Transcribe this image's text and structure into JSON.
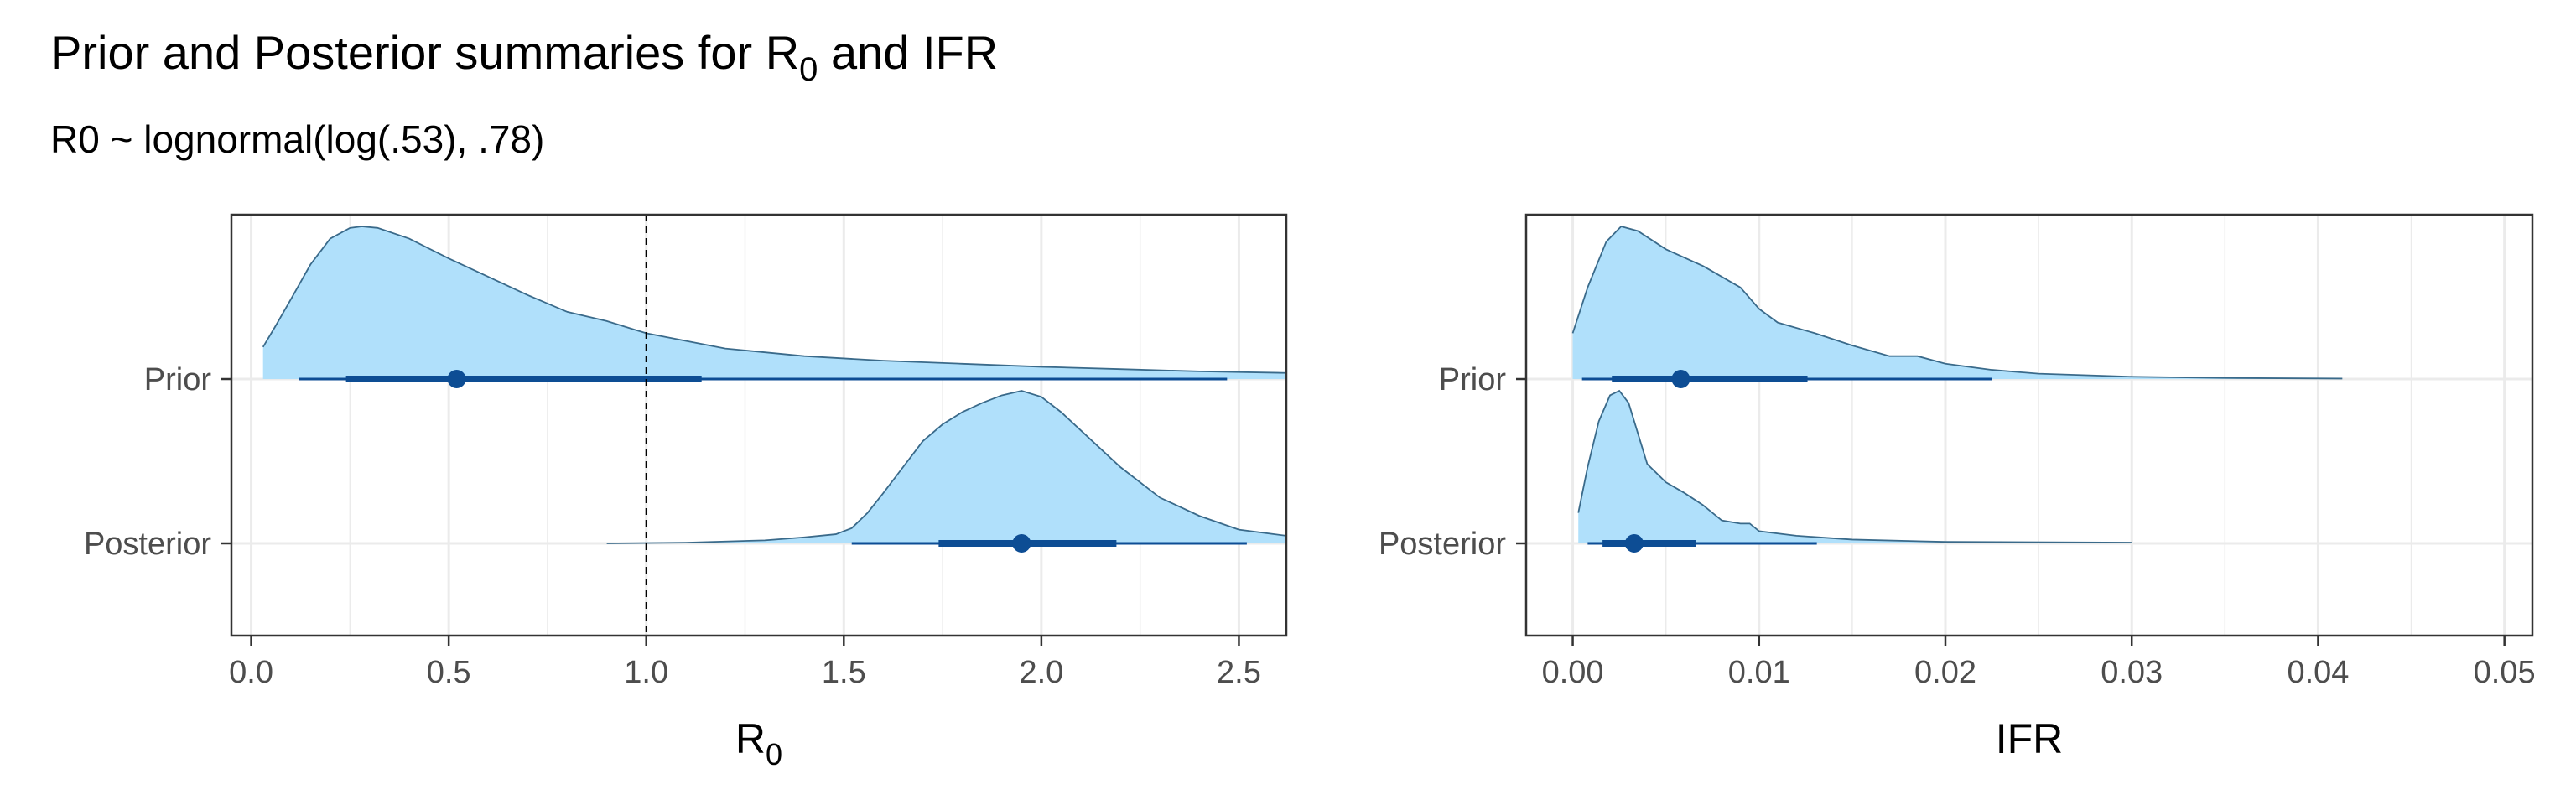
{
  "title": {
    "text_before": "Prior and Posterior summaries for R",
    "text_sub": "0",
    "text_after": " and IFR"
  },
  "subtitle": "R0 ~ lognormal(log(.53), .78)",
  "colors": {
    "density_fill": "#b0e0fb",
    "density_line": "#3a6a8a",
    "interval": "#0d4d94",
    "grid": "#ebebeb",
    "panel_border": "#333333",
    "reference_line": "#000000"
  },
  "chart_data": [
    {
      "type": "halfeye",
      "panel": "R0",
      "xlabel_main": "R",
      "xlabel_sub": "0",
      "xlim": [
        -0.05,
        2.62
      ],
      "x_ticks": [
        0,
        0.5,
        1,
        1.5,
        2,
        2.5
      ],
      "x_tick_labels": [
        "0.0",
        "0.5",
        "1.0",
        "1.5",
        "2.0",
        "2.5"
      ],
      "categories": [
        "Prior",
        "Posterior"
      ],
      "reference_line": 1.0,
      "series": [
        {
          "name": "Prior",
          "density": [
            [
              0.03,
              0.21
            ],
            [
              0.06,
              0.34
            ],
            [
              0.1,
              0.52
            ],
            [
              0.15,
              0.75
            ],
            [
              0.2,
              0.92
            ],
            [
              0.25,
              0.99
            ],
            [
              0.28,
              1.0
            ],
            [
              0.32,
              0.99
            ],
            [
              0.4,
              0.92
            ],
            [
              0.5,
              0.79
            ],
            [
              0.6,
              0.67
            ],
            [
              0.7,
              0.55
            ],
            [
              0.8,
              0.44
            ],
            [
              0.9,
              0.38
            ],
            [
              1.0,
              0.3
            ],
            [
              1.1,
              0.25
            ],
            [
              1.2,
              0.2
            ],
            [
              1.4,
              0.15
            ],
            [
              1.6,
              0.12
            ],
            [
              1.8,
              0.1
            ],
            [
              2.0,
              0.08
            ],
            [
              2.2,
              0.065
            ],
            [
              2.4,
              0.05
            ],
            [
              2.62,
              0.04
            ]
          ],
          "point": 0.52,
          "interval_66": [
            0.24,
            1.14
          ],
          "interval_95": [
            0.12,
            2.47
          ]
        },
        {
          "name": "Posterior",
          "density": [
            [
              0.9,
              0.0
            ],
            [
              1.1,
              0.005
            ],
            [
              1.3,
              0.02
            ],
            [
              1.4,
              0.04
            ],
            [
              1.48,
              0.06
            ],
            [
              1.52,
              0.1
            ],
            [
              1.56,
              0.2
            ],
            [
              1.6,
              0.33
            ],
            [
              1.65,
              0.5
            ],
            [
              1.7,
              0.67
            ],
            [
              1.75,
              0.78
            ],
            [
              1.8,
              0.86
            ],
            [
              1.85,
              0.92
            ],
            [
              1.9,
              0.97
            ],
            [
              1.95,
              1.0
            ],
            [
              2.0,
              0.96
            ],
            [
              2.05,
              0.86
            ],
            [
              2.1,
              0.74
            ],
            [
              2.2,
              0.5
            ],
            [
              2.3,
              0.3
            ],
            [
              2.4,
              0.18
            ],
            [
              2.5,
              0.09
            ],
            [
              2.62,
              0.05
            ]
          ],
          "point": 1.95,
          "interval_66": [
            1.74,
            2.19
          ],
          "interval_95": [
            1.52,
            2.52
          ]
        }
      ]
    },
    {
      "type": "halfeye",
      "panel": "IFR",
      "xlabel_main": "IFR",
      "xlabel_sub": "",
      "xlim": [
        -0.0025,
        0.0515
      ],
      "x_ticks": [
        0,
        0.01,
        0.02,
        0.03,
        0.04,
        0.05
      ],
      "x_tick_labels": [
        "0.00",
        "0.01",
        "0.02",
        "0.03",
        "0.04",
        "0.05"
      ],
      "categories": [
        "Prior",
        "Posterior"
      ],
      "series": [
        {
          "name": "Prior",
          "density": [
            [
              0.0,
              0.3
            ],
            [
              0.0008,
              0.6
            ],
            [
              0.0018,
              0.9
            ],
            [
              0.0026,
              1.0
            ],
            [
              0.0035,
              0.97
            ],
            [
              0.005,
              0.85
            ],
            [
              0.007,
              0.74
            ],
            [
              0.009,
              0.6
            ],
            [
              0.01,
              0.46
            ],
            [
              0.011,
              0.37
            ],
            [
              0.013,
              0.3
            ],
            [
              0.015,
              0.22
            ],
            [
              0.017,
              0.15
            ],
            [
              0.0185,
              0.15
            ],
            [
              0.02,
              0.1
            ],
            [
              0.0225,
              0.06
            ],
            [
              0.025,
              0.035
            ],
            [
              0.03,
              0.015
            ],
            [
              0.035,
              0.007
            ],
            [
              0.0413,
              0.003
            ]
          ],
          "point": 0.0058,
          "interval_66": [
            0.0021,
            0.0126
          ],
          "interval_95": [
            0.0005,
            0.0225
          ]
        },
        {
          "name": "Posterior",
          "density": [
            [
              0.0003,
              0.2
            ],
            [
              0.0008,
              0.5
            ],
            [
              0.0014,
              0.8
            ],
            [
              0.002,
              0.97
            ],
            [
              0.0025,
              1.0
            ],
            [
              0.003,
              0.92
            ],
            [
              0.0035,
              0.72
            ],
            [
              0.004,
              0.52
            ],
            [
              0.005,
              0.4
            ],
            [
              0.006,
              0.33
            ],
            [
              0.007,
              0.25
            ],
            [
              0.008,
              0.15
            ],
            [
              0.009,
              0.13
            ],
            [
              0.0095,
              0.13
            ],
            [
              0.01,
              0.08
            ],
            [
              0.012,
              0.05
            ],
            [
              0.015,
              0.025
            ],
            [
              0.02,
              0.01
            ],
            [
              0.03,
              0.005
            ]
          ],
          "point": 0.0033,
          "interval_66": [
            0.0016,
            0.0066
          ],
          "interval_95": [
            0.0008,
            0.0131
          ]
        }
      ]
    }
  ]
}
